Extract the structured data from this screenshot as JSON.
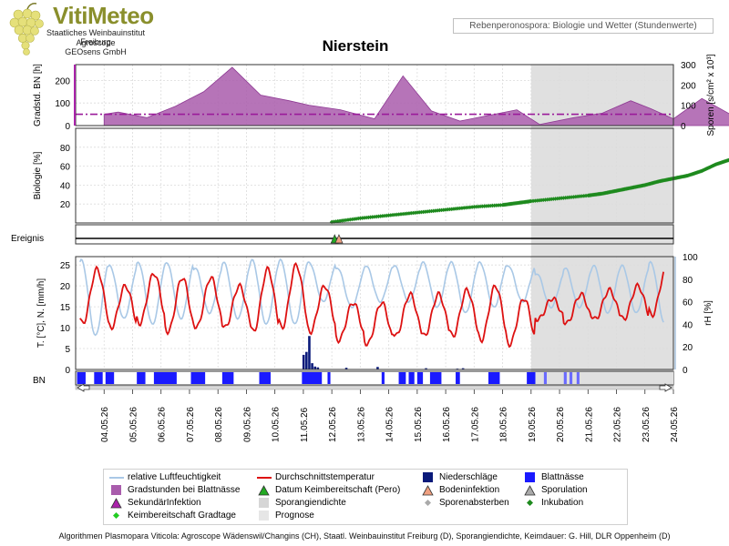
{
  "header": {
    "brand": "VitiMeteo",
    "org_lines": [
      "Staatliches Weinbauinstitut Freiburg",
      "Agroscope",
      "GEOsens GmbH"
    ],
    "subtitle": "Rebenperonospora: Biologie und Wetter (Stundenwerte)",
    "station": "Nierstein"
  },
  "colors": {
    "gradstunden": "#a95cac",
    "gradstunden_line": "#8e3a93",
    "dashdot": "#9a1a9a",
    "biology": "#1e8a1e",
    "humidity": "#a9c8e6",
    "temperature": "#dd1111",
    "rain": "#0a1a7a",
    "wetness": "#1a1aff",
    "forecast": "#e0e0e0",
    "event_marker": "#f0a080"
  },
  "chart_data": [
    {
      "type": "area",
      "panel": "gradstunden",
      "ylabel": "Gradstd. BN [h]",
      "ylabel_right": "Sporen [s/cm² x 10³]",
      "ylim": [
        0,
        270
      ],
      "yticks": [
        0,
        100,
        200
      ],
      "y2lim": [
        0,
        300
      ],
      "y2ticks": [
        0,
        100,
        200,
        300
      ],
      "threshold": 50,
      "x": [
        0,
        0.5,
        1.5,
        2.5,
        3.5,
        4.5,
        5.5,
        6.5,
        7.2,
        8.3,
        9.5,
        10.5,
        11.5,
        12.5,
        13.5,
        14.5,
        15.3,
        16.5,
        17.5,
        18.5,
        19.2,
        20,
        21,
        22,
        23,
        23.7
      ],
      "values": [
        50,
        60,
        35,
        85,
        150,
        258,
        135,
        110,
        90,
        70,
        30,
        220,
        65,
        20,
        45,
        70,
        5,
        35,
        55,
        110,
        75,
        30,
        120,
        50,
        50,
        40
      ]
    },
    {
      "type": "scatter",
      "panel": "biologie",
      "ylabel": "Biologie [%]",
      "ylim": [
        0,
        100
      ],
      "yticks": [
        20,
        40,
        60,
        80
      ],
      "series": [
        {
          "name": "Inkubation",
          "x": [
            8.0,
            9.0,
            10.0,
            11.0,
            12.0,
            13.0,
            14.0,
            14.5,
            15.0,
            16.0,
            17.0,
            17.5,
            18.0,
            18.5,
            19.0,
            19.5,
            20.0,
            20.5,
            21.0,
            21.5,
            22.0,
            22.5,
            23.0
          ],
          "values": [
            1,
            5,
            8,
            11,
            14,
            17,
            19,
            21,
            23,
            26,
            29,
            31,
            34,
            37,
            40,
            44,
            47,
            50,
            55,
            62,
            67,
            73,
            79
          ]
        }
      ]
    },
    {
      "type": "scatter",
      "panel": "ereignis",
      "ylabel": "Ereignis",
      "series": [
        {
          "name": "Datum Keimbereitschaft (Pero)",
          "x": [
            8.1
          ],
          "values": [
            0
          ]
        },
        {
          "name": "Bodeninfektion",
          "x": [
            8.25
          ],
          "values": [
            0
          ]
        }
      ]
    },
    {
      "type": "line",
      "panel": "wetter",
      "ylabel": "T. [°C], N. [mm/h]",
      "ylabel_right": "rH [%]",
      "ylim": [
        0,
        27
      ],
      "yticks": [
        0,
        5,
        10,
        15,
        20,
        25
      ],
      "y2lim": [
        0,
        100
      ],
      "y2ticks": [
        0,
        20,
        40,
        60,
        80,
        100
      ],
      "days": 21.5,
      "temperature": {
        "name": "Durchschnittstemperatur",
        "day_min": [
          11,
          10,
          11,
          9,
          10,
          10,
          9,
          10,
          9,
          7,
          6,
          8,
          8,
          8,
          7,
          6,
          12,
          11,
          12,
          12,
          13,
          12
        ],
        "day_max": [
          24,
          20,
          23,
          22,
          22,
          20,
          24,
          25,
          20,
          16,
          16,
          18,
          18,
          19,
          20,
          17,
          17,
          18,
          19,
          20,
          24,
          24
        ]
      },
      "humidity": {
        "name": "relative Luftfeuchtigkeit",
        "day_min": [
          30,
          45,
          40,
          45,
          50,
          45,
          40,
          40,
          60,
          55,
          60,
          60,
          55,
          50,
          55,
          60,
          55,
          55,
          50,
          50,
          40,
          45
        ],
        "day_max": [
          97,
          92,
          95,
          95,
          90,
          95,
          97,
          97,
          95,
          90,
          92,
          92,
          95,
          95,
          95,
          92,
          85,
          90,
          92,
          92,
          95,
          95
        ]
      },
      "rain": {
        "name": "Niederschläge",
        "x": [
          8.0,
          8.1,
          8.2,
          8.3,
          8.4,
          8.5,
          9.5,
          10.6,
          12.3,
          13.4,
          13.6
        ],
        "values": [
          3.5,
          4.2,
          8.0,
          1.5,
          0.7,
          0.5,
          0.4,
          0.6,
          0.3,
          0.2,
          0.3
        ]
      },
      "forecast_start": 15.0
    },
    {
      "type": "bar",
      "panel": "bn",
      "ylabel": "BN",
      "segments": [
        [
          0.0,
          0.3
        ],
        [
          0.6,
          0.9
        ],
        [
          1.0,
          1.3
        ],
        [
          2.1,
          2.4
        ],
        [
          2.7,
          3.5
        ],
        [
          4.0,
          4.5
        ],
        [
          5.1,
          5.5
        ],
        [
          6.4,
          6.8
        ],
        [
          7.9,
          8.6
        ],
        [
          8.8,
          8.9
        ],
        [
          10.7,
          10.8
        ],
        [
          11.3,
          11.55
        ],
        [
          11.65,
          11.85
        ],
        [
          11.95,
          12.15
        ],
        [
          12.4,
          12.8
        ],
        [
          13.3,
          13.45
        ],
        [
          14.45,
          14.85
        ],
        [
          15.8,
          16.1
        ],
        [
          16.4,
          16.5
        ],
        [
          17.1,
          17.2
        ],
        [
          17.3,
          17.4
        ],
        [
          17.55,
          17.65
        ]
      ]
    }
  ],
  "xaxis": {
    "ticks": [
      "04.05.26",
      "05.05.26",
      "06.05.26",
      "07.05.26",
      "08.05.26",
      "09.05.26",
      "10.05.26",
      "11.05.26",
      "12.05.26",
      "13.05.26",
      "14.05.26",
      "15.05.26",
      "16.05.26",
      "17.05.26",
      "18.05.26",
      "19.05.26",
      "20.05.26",
      "21.05.26",
      "22.05.26",
      "23.05.26",
      "24.05.26"
    ]
  },
  "legend": {
    "items": [
      {
        "label": "relative Luftfeuchtigkeit",
        "symbol": "line",
        "color": "#a9c8e6"
      },
      {
        "label": "Durchschnittstemperatur",
        "symbol": "line",
        "color": "#dd1111"
      },
      {
        "label": "Niederschläge",
        "symbol": "square",
        "color": "#0a1a7a"
      },
      {
        "label": "Blattnässe",
        "symbol": "square",
        "color": "#1a1aff"
      },
      {
        "label": "Gradstunden bei Blattnässe",
        "symbol": "square",
        "color": "#a95cac"
      },
      {
        "label": "Datum Keimbereitschaft (Pero)",
        "symbol": "triangle",
        "color": "#22aa22"
      },
      {
        "label": "Bodeninfektion",
        "symbol": "triangle",
        "color": "#f0a080"
      },
      {
        "label": "Sporulation",
        "symbol": "triangle",
        "color": "#aaaaaa"
      },
      {
        "label": "SekundärInfektion",
        "symbol": "triangle",
        "color": "#aa22aa"
      },
      {
        "label": "Sporangiendichte",
        "symbol": "square",
        "color": "#d6d6d6"
      },
      {
        "label": "Sporenabsterben",
        "symbol": "diamond",
        "color": "#aaaaaa"
      },
      {
        "label": "Inkubation",
        "symbol": "diamond",
        "color": "#1e8a1e"
      },
      {
        "label": "Keimbereitschaft Gradtage",
        "symbol": "diamond",
        "color": "#22cc22"
      },
      {
        "label": "Prognose",
        "symbol": "square",
        "color": "#e6e6e6"
      }
    ]
  },
  "footer": "Algorithmen Plasmopara Viticola: Agroscope Wädenswil/Changins (CH), Staatl. Weinbauinstitut Freiburg (D), Sporangiendichte, Keimdauer: G. Hill, DLR Oppenheim (D)"
}
